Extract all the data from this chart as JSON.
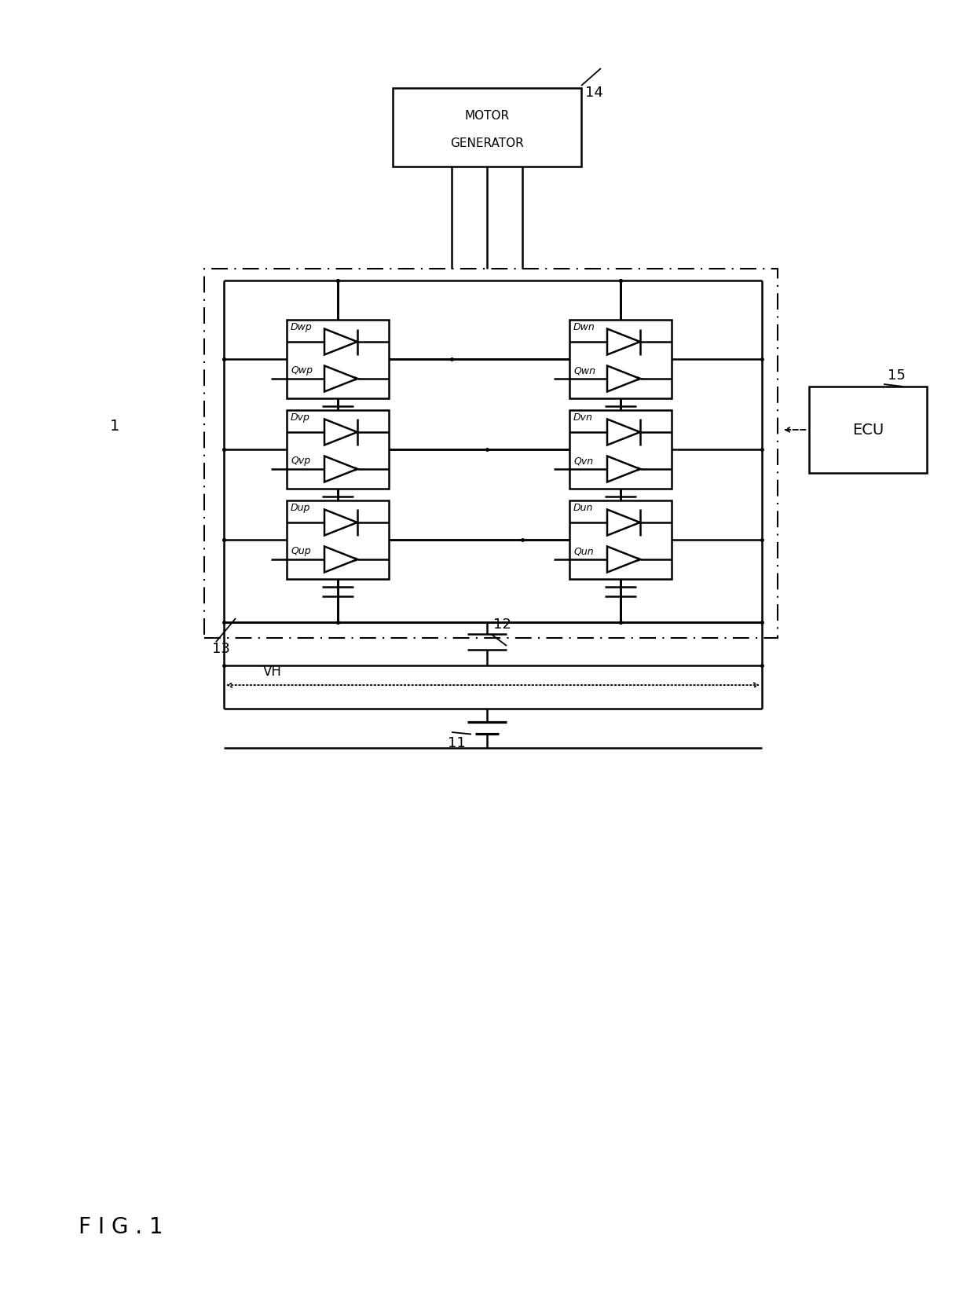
{
  "bg_color": "#ffffff",
  "motor_generator_text": [
    "MOTOR",
    "GENERATOR"
  ],
  "ecu_text": "ECU",
  "label_1": "1",
  "label_11": "11",
  "label_12": "12",
  "label_13": "13",
  "label_14": "14",
  "label_15": "15",
  "label_VH": "VH",
  "fig_label": "F I G . 1",
  "cells_left": [
    {
      "q": "Qwp",
      "d": "Dwp"
    },
    {
      "q": "Qvp",
      "d": "Dvp"
    },
    {
      "q": "Qup",
      "d": "Dup"
    }
  ],
  "cells_right": [
    {
      "q": "Qwn",
      "d": "Dwn"
    },
    {
      "q": "Qvn",
      "d": "Dvn"
    },
    {
      "q": "Qun",
      "d": "Dun"
    }
  ]
}
